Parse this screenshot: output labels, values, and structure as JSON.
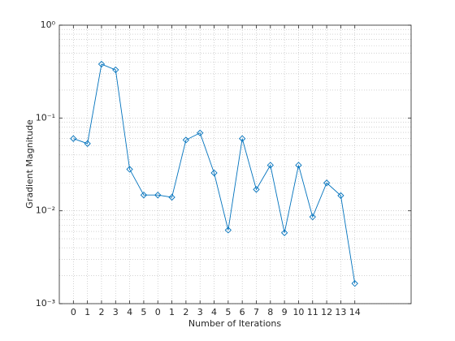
{
  "chart_data": {
    "type": "line",
    "xlabel": "Number of Iterations",
    "ylabel": "Gradient Magnitude",
    "x": [
      1,
      2,
      3,
      4,
      5,
      6,
      7,
      8,
      9,
      10,
      11,
      12,
      13,
      14,
      15,
      16,
      17,
      18,
      19,
      20,
      21
    ],
    "values": [
      0.06,
      0.053,
      0.38,
      0.33,
      0.028,
      0.0148,
      0.0148,
      0.014,
      0.058,
      0.069,
      0.0256,
      0.0062,
      0.06,
      0.017,
      0.031,
      0.0058,
      0.031,
      0.0086,
      0.02,
      0.0146,
      0.00165
    ],
    "color": "#0072bd",
    "marker": "diamond",
    "xlim": [
      0,
      25
    ],
    "xticks": [
      {
        "value": 1,
        "label": "0"
      },
      {
        "value": 2,
        "label": "1"
      },
      {
        "value": 3,
        "label": "2"
      },
      {
        "value": 4,
        "label": "3"
      },
      {
        "value": 5,
        "label": "4"
      },
      {
        "value": 6,
        "label": "5"
      },
      {
        "value": 7,
        "label": "0"
      },
      {
        "value": 8,
        "label": "1"
      },
      {
        "value": 9,
        "label": "2"
      },
      {
        "value": 10,
        "label": "3"
      },
      {
        "value": 11,
        "label": "4"
      },
      {
        "value": 12,
        "label": "5"
      },
      {
        "value": 13,
        "label": "6"
      },
      {
        "value": 14,
        "label": "7"
      },
      {
        "value": 15,
        "label": "8"
      },
      {
        "value": 16,
        "label": "9"
      },
      {
        "value": 17,
        "label": "10"
      },
      {
        "value": 18,
        "label": "11"
      },
      {
        "value": 19,
        "label": "12"
      },
      {
        "value": 20,
        "label": "13"
      },
      {
        "value": 21,
        "label": "14"
      }
    ],
    "ylim": [
      0.001,
      1
    ],
    "ylog": true,
    "yticks": [
      {
        "value": 0.001,
        "label": "10⁻³"
      },
      {
        "value": 0.01,
        "label": "10⁻²"
      },
      {
        "value": 0.1,
        "label": "10⁻¹"
      },
      {
        "value": 1,
        "label": "10⁰"
      }
    ],
    "grid": true,
    "minor_grid": true
  }
}
